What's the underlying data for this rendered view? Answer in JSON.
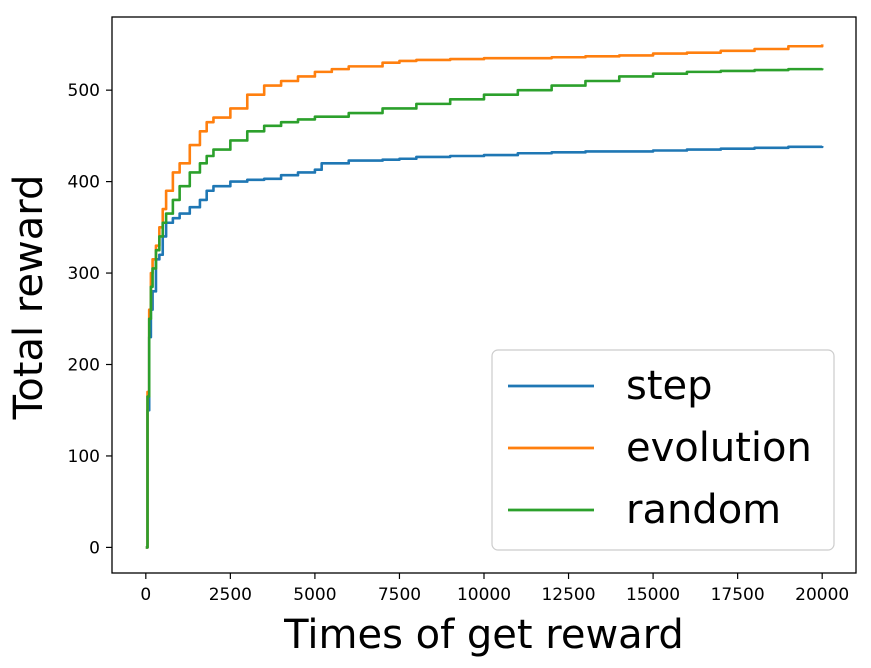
{
  "chart_data": {
    "type": "line",
    "title": "",
    "xlabel": "Times of get reward",
    "ylabel": "Total reward",
    "xlim": [
      -1000,
      21000
    ],
    "ylim": [
      -28,
      580
    ],
    "xticks": [
      0,
      2500,
      5000,
      7500,
      10000,
      12500,
      15000,
      17500,
      20000
    ],
    "yticks": [
      0,
      100,
      200,
      300,
      400,
      500
    ],
    "grid": false,
    "legend_position": "lower-right",
    "series": [
      {
        "name": "step",
        "color": "#1f77b4",
        "x": [
          0,
          50,
          100,
          150,
          200,
          300,
          400,
          500,
          600,
          800,
          1000,
          1300,
          1600,
          1800,
          2000,
          2500,
          3000,
          3500,
          4000,
          4500,
          5000,
          5200,
          6000,
          7000,
          7500,
          8000,
          9000,
          10000,
          11000,
          12000,
          13000,
          14000,
          15000,
          16000,
          17000,
          18000,
          19000,
          20000
        ],
        "y": [
          0,
          150,
          230,
          260,
          280,
          315,
          320,
          340,
          355,
          360,
          365,
          372,
          380,
          390,
          395,
          400,
          402,
          403,
          407,
          410,
          413,
          420,
          423,
          424,
          425,
          427,
          428,
          429,
          431,
          432,
          433,
          433,
          434,
          435,
          436,
          437,
          438,
          439
        ]
      },
      {
        "name": "evolution",
        "color": "#ff7f0e",
        "x": [
          0,
          50,
          100,
          150,
          200,
          300,
          400,
          500,
          600,
          800,
          1000,
          1300,
          1600,
          1800,
          2000,
          2500,
          3000,
          3500,
          4000,
          4500,
          5000,
          5500,
          6000,
          7000,
          7500,
          8000,
          9000,
          10000,
          11000,
          12000,
          13000,
          14000,
          15000,
          16000,
          17000,
          18000,
          19000,
          20000
        ],
        "y": [
          0,
          170,
          260,
          300,
          315,
          330,
          350,
          370,
          390,
          410,
          420,
          440,
          455,
          465,
          470,
          480,
          495,
          505,
          510,
          515,
          520,
          523,
          526,
          530,
          532,
          533,
          534,
          535,
          535,
          536,
          537,
          538,
          540,
          541,
          543,
          545,
          548,
          550
        ]
      },
      {
        "name": "random",
        "color": "#2ca02c",
        "x": [
          0,
          50,
          100,
          150,
          200,
          300,
          400,
          500,
          600,
          800,
          1000,
          1300,
          1600,
          1800,
          2000,
          2500,
          3000,
          3500,
          4000,
          4500,
          5000,
          6000,
          7000,
          8000,
          9000,
          10000,
          11000,
          12000,
          13000,
          14000,
          15000,
          16000,
          17000,
          18000,
          19000,
          20000
        ],
        "y": [
          0,
          165,
          250,
          285,
          305,
          325,
          340,
          355,
          365,
          380,
          395,
          410,
          420,
          428,
          435,
          445,
          455,
          461,
          465,
          468,
          471,
          475,
          480,
          485,
          490,
          495,
          500,
          505,
          510,
          515,
          518,
          520,
          521,
          522,
          523,
          524
        ]
      }
    ]
  }
}
